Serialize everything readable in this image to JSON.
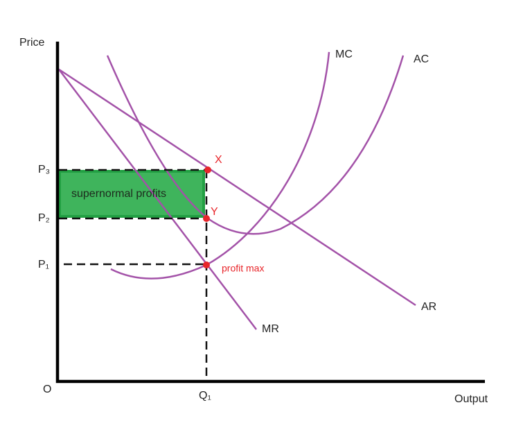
{
  "axes": {
    "y_label": "Price",
    "x_label": "Output",
    "origin": "O"
  },
  "price_levels": [
    "P₃",
    "P₂",
    "P₁"
  ],
  "quantity": "Q₁",
  "curves": {
    "mc": "MC",
    "ac": "AC",
    "ar": "AR",
    "mr": "MR"
  },
  "points": {
    "x": "X",
    "y": "Y"
  },
  "annotations": {
    "profit_max": "profit max",
    "area": "supernormal profits"
  }
}
